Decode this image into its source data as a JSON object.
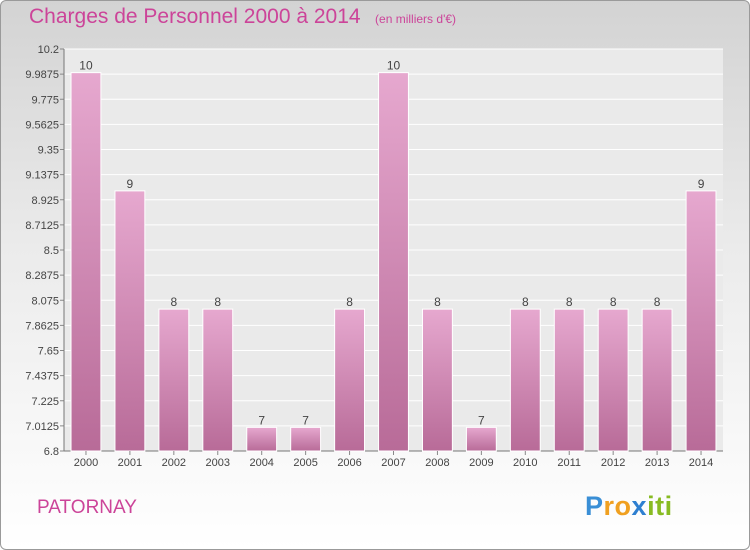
{
  "chart_data": {
    "type": "bar",
    "title": "Charges de Personnel 2000 à 2014",
    "subtitle": "(en milliers d'€)",
    "categories": [
      "2000",
      "2001",
      "2002",
      "2003",
      "2004",
      "2005",
      "2006",
      "2007",
      "2008",
      "2009",
      "2010",
      "2011",
      "2012",
      "2013",
      "2014"
    ],
    "values": [
      10,
      9,
      8,
      8,
      7,
      7,
      8,
      10,
      8,
      7,
      8,
      8,
      8,
      8,
      9
    ],
    "data_labels": [
      "10",
      "9",
      "8",
      "8",
      "7",
      "7",
      "8",
      "10",
      "8",
      "7",
      "8",
      "8",
      "8",
      "8",
      "9"
    ],
    "ylim": [
      6.8,
      10.2
    ],
    "yticks": [
      10.2,
      9.9875,
      9.775,
      9.5625,
      9.35,
      9.1375,
      8.925,
      8.7125,
      8.5,
      8.2875,
      8.075,
      7.8625,
      7.65,
      7.4375,
      7.225,
      7.0125,
      6.8
    ],
    "ytick_labels": [
      "10.2",
      "9.9875",
      "9.775",
      "9.5625",
      "9.35",
      "9.1375",
      "8.925",
      "8.7125",
      "8.5",
      "8.2875",
      "8.075",
      "7.8625",
      "7.65",
      "7.4375",
      "7.225",
      "7.0125",
      "6.8"
    ],
    "xlabel": "",
    "ylabel": "",
    "grid": true,
    "bar_color": "#d88fb9"
  },
  "commune": "PATORNAY",
  "logo": {
    "letters": [
      "P",
      "r",
      "o",
      "x",
      "i",
      "t",
      "i"
    ],
    "colors": [
      "#3a8fd6",
      "#f0a020",
      "#f0a020",
      "#2e7fd0",
      "#88bb22",
      "#88bb22",
      "#88bb22"
    ]
  }
}
